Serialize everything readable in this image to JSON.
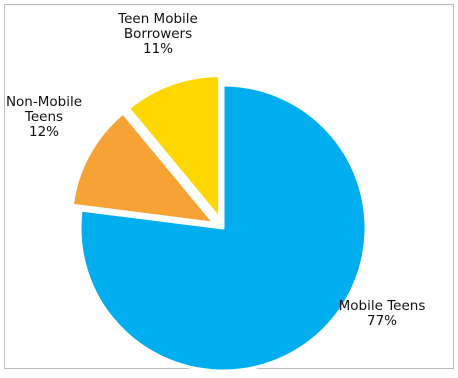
{
  "chart_data": {
    "type": "pie",
    "title": "",
    "slices": [
      {
        "name": "Mobile Teens",
        "value": 77,
        "label_lines": [
          "Mobile Teens",
          "77%"
        ],
        "color": "#00AEEF",
        "exploded": false
      },
      {
        "name": "Non-Mobile Teens",
        "value": 12,
        "label_lines": [
          "Non-Mobile",
          "Teens",
          "12%"
        ],
        "color": "#F7A234",
        "exploded": true
      },
      {
        "name": "Teen Mobile Borrowers",
        "value": 11,
        "label_lines": [
          "Teen Mobile",
          "Borrowers",
          "11%"
        ],
        "color": "#FFD700",
        "exploded": true
      }
    ],
    "legend": "none"
  }
}
